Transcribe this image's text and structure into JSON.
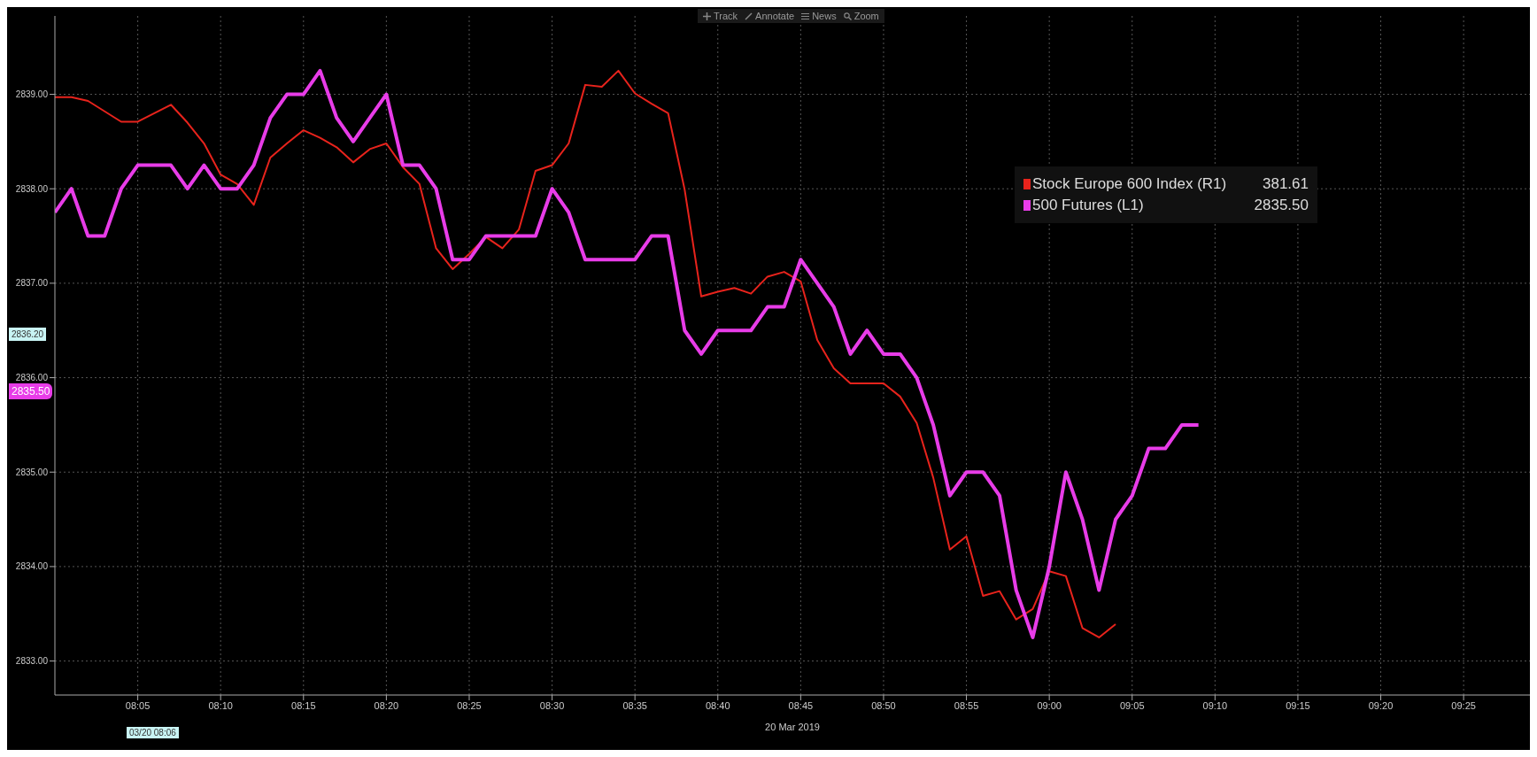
{
  "chart_data": {
    "type": "line",
    "xlabel": "20 Mar 2019",
    "x": [
      "2019-03-20T08:00",
      "2019-03-20T08:01",
      "2019-03-20T08:02",
      "2019-03-20T08:03",
      "2019-03-20T08:04",
      "2019-03-20T08:05",
      "2019-03-20T08:06",
      "2019-03-20T08:07",
      "2019-03-20T08:08",
      "2019-03-20T08:09",
      "2019-03-20T08:10",
      "2019-03-20T08:11",
      "2019-03-20T08:12",
      "2019-03-20T08:13",
      "2019-03-20T08:14",
      "2019-03-20T08:15",
      "2019-03-20T08:16",
      "2019-03-20T08:17",
      "2019-03-20T08:18",
      "2019-03-20T08:19",
      "2019-03-20T08:20",
      "2019-03-20T08:21",
      "2019-03-20T08:22",
      "2019-03-20T08:23",
      "2019-03-20T08:24",
      "2019-03-20T08:25",
      "2019-03-20T08:26",
      "2019-03-20T08:27",
      "2019-03-20T08:28",
      "2019-03-20T08:29",
      "2019-03-20T08:30",
      "2019-03-20T08:31",
      "2019-03-20T08:32",
      "2019-03-20T08:33",
      "2019-03-20T08:34",
      "2019-03-20T08:35",
      "2019-03-20T08:36",
      "2019-03-20T08:37",
      "2019-03-20T08:38",
      "2019-03-20T08:39",
      "2019-03-20T08:40",
      "2019-03-20T08:41",
      "2019-03-20T08:42",
      "2019-03-20T08:43",
      "2019-03-20T08:44",
      "2019-03-20T08:45",
      "2019-03-20T08:46",
      "2019-03-20T08:47",
      "2019-03-20T08:48",
      "2019-03-20T08:49",
      "2019-03-20T08:50",
      "2019-03-20T08:51",
      "2019-03-20T08:52",
      "2019-03-20T08:53",
      "2019-03-20T08:54",
      "2019-03-20T08:55",
      "2019-03-20T08:56",
      "2019-03-20T08:57",
      "2019-03-20T08:58",
      "2019-03-20T08:59",
      "2019-03-20T09:00",
      "2019-03-20T09:01",
      "2019-03-20T09:02",
      "2019-03-20T09:03",
      "2019-03-20T09:04",
      "2019-03-20T09:05",
      "2019-03-20T09:06",
      "2019-03-20T09:07",
      "2019-03-20T09:08",
      "2019-03-20T09:09"
    ],
    "series": [
      {
        "name": "Stock Europe 600 Index (R1)",
        "color": "#e8231c",
        "values": [
          2838.97,
          2838.97,
          2838.93,
          2838.82,
          2838.71,
          2838.71,
          2838.8,
          2838.89,
          2838.7,
          2838.48,
          2838.15,
          2838.05,
          2837.83,
          2838.33,
          2838.48,
          2838.62,
          2838.54,
          2838.44,
          2838.28,
          2838.42,
          2838.48,
          2838.23,
          2838.05,
          2837.37,
          2837.15,
          2837.31,
          2837.49,
          2837.37,
          2837.57,
          2838.19,
          2838.25,
          2838.48,
          2839.1,
          2839.08,
          2839.25,
          2839.01,
          2838.9,
          2838.8,
          2837.99,
          2836.86,
          2836.91,
          2836.95,
          2836.89,
          2837.07,
          2837.12,
          2837.02,
          2836.4,
          2836.1,
          2835.94,
          2835.94,
          2835.94,
          2835.8,
          2835.52,
          2834.94,
          2834.18,
          2834.32,
          2833.69,
          2833.74,
          2833.44,
          2833.55,
          2833.95,
          2833.9,
          2833.35,
          2833.25,
          2833.39,
          null,
          null,
          null,
          null,
          null
        ]
      },
      {
        "name": "500 Futures (L1)",
        "color": "#e83ce8",
        "values": [
          2837.75,
          2838,
          2837.5,
          2837.5,
          2838,
          2838.25,
          2838.25,
          2838.25,
          2838,
          2838.25,
          2838,
          2838,
          2838.25,
          2838.75,
          2839,
          2839,
          2839.25,
          2838.75,
          2838.5,
          2838.75,
          2839,
          2838.25,
          2838.25,
          2838,
          2837.25,
          2837.25,
          2837.5,
          2837.5,
          2837.5,
          2837.5,
          2838,
          2837.75,
          2837.25,
          2837.25,
          2837.25,
          2837.25,
          2837.5,
          2837.5,
          2836.5,
          2836.25,
          2836.5,
          2836.5,
          2836.5,
          2836.75,
          2836.75,
          2837.25,
          2837,
          2836.75,
          2836.25,
          2836.5,
          2836.25,
          2836.25,
          2836,
          2835.5,
          2834.75,
          2835,
          2835,
          2834.75,
          2833.75,
          2833.25,
          2834,
          2835,
          2834.5,
          2833.75,
          2834.5,
          2834.75,
          2835.25,
          2835.25,
          2835.5,
          2835.5
        ]
      }
    ],
    "xlim": [
      "2019-03-20T08:00",
      "2019-03-20T09:29"
    ],
    "xticks": [
      {
        "value": "2019-03-20T08:05",
        "label": "08:05"
      },
      {
        "value": "2019-03-20T08:10",
        "label": "08:10"
      },
      {
        "value": "2019-03-20T08:15",
        "label": "08:15"
      },
      {
        "value": "2019-03-20T08:20",
        "label": "08:20"
      },
      {
        "value": "2019-03-20T08:25",
        "label": "08:25"
      },
      {
        "value": "2019-03-20T08:30",
        "label": "08:30"
      },
      {
        "value": "2019-03-20T08:35",
        "label": "08:35"
      },
      {
        "value": "2019-03-20T08:40",
        "label": "08:40"
      },
      {
        "value": "2019-03-20T08:45",
        "label": "08:45"
      },
      {
        "value": "2019-03-20T08:50",
        "label": "08:50"
      },
      {
        "value": "2019-03-20T08:55",
        "label": "08:55"
      },
      {
        "value": "2019-03-20T09:00",
        "label": "09:00"
      },
      {
        "value": "2019-03-20T09:05",
        "label": "09:05"
      },
      {
        "value": "2019-03-20T09:10",
        "label": "09:10"
      },
      {
        "value": "2019-03-20T09:15",
        "label": "09:15"
      },
      {
        "value": "2019-03-20T09:20",
        "label": "09:20"
      },
      {
        "value": "2019-03-20T09:25",
        "label": "09:25"
      }
    ],
    "ylim": [
      2832.64,
      2839.83
    ],
    "yticks": [
      {
        "value": 2833,
        "label": "2833.00"
      },
      {
        "value": 2834,
        "label": "2834.00"
      },
      {
        "value": 2835,
        "label": "2835.00"
      },
      {
        "value": 2836,
        "label": "2836.00"
      },
      {
        "value": 2837,
        "label": "2837.00"
      },
      {
        "value": 2838,
        "label": "2838.00"
      },
      {
        "value": 2839,
        "label": "2839.00"
      }
    ],
    "annotations": [
      "Track",
      "Annotate",
      "News",
      "Zoom",
      "381.61",
      "2835.50",
      "2836.20",
      "2835.50",
      "03/20 08:06"
    ],
    "grid": true,
    "legend": "top right",
    "marker": "none",
    "line_style": "solid"
  }
}
